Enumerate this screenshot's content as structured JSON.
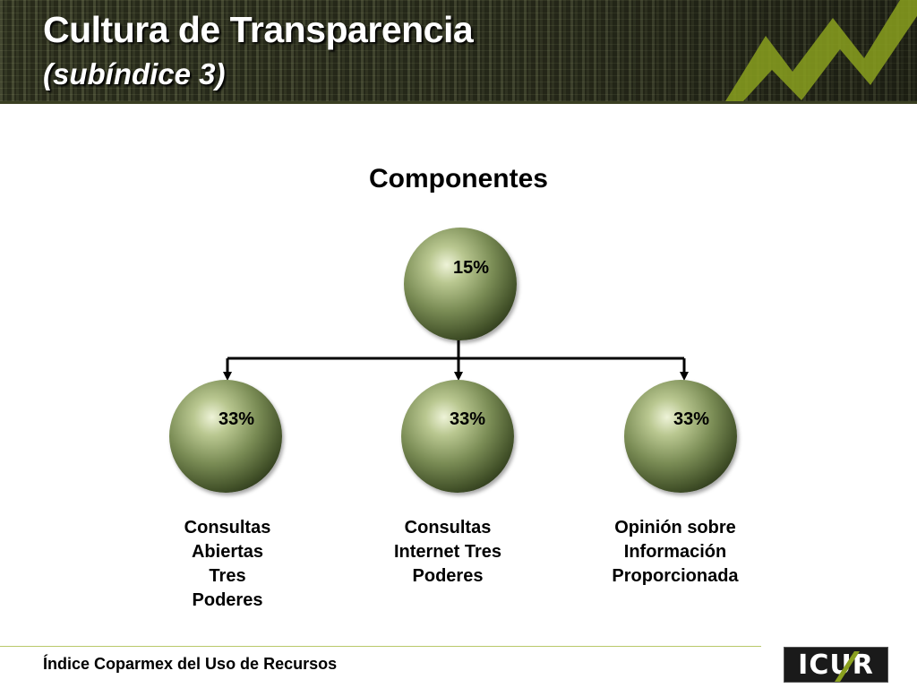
{
  "header": {
    "title": "Cultura de Transparencia",
    "subtitle": "(subíndice 3)"
  },
  "diagram": {
    "title": "Componentes",
    "root": {
      "value": "15%"
    },
    "children": [
      {
        "value": "33%",
        "label": [
          "Consultas",
          "Abiertas",
          "Tres",
          "Poderes"
        ]
      },
      {
        "value": "33%",
        "label": [
          "Consultas",
          "Internet Tres",
          "Poderes"
        ]
      },
      {
        "value": "33%",
        "label": [
          "Opinión sobre",
          "Información",
          "Proporcionada"
        ]
      }
    ]
  },
  "footer": {
    "text": "Índice Coparmex del Uso de Recursos",
    "logo_text": "ICUR"
  },
  "colors": {
    "sphere": "#5f7040",
    "accent": "#8aa01f",
    "header_bg": "#2a2d1c"
  }
}
